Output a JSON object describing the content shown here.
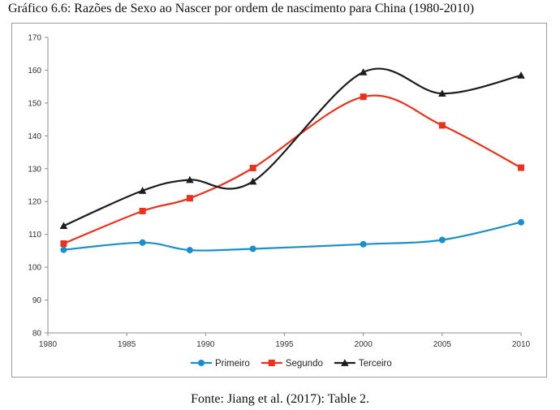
{
  "caption": "Gráfico 6.6: Razões de Sexo ao Nascer por ordem de nascimento para China (1980-2010)",
  "source": "Fonte: Jiang et al. (2017): Table 2.",
  "chart_data": {
    "type": "line",
    "title": "Gráfico 6.6: Razões de Sexo ao Nascer por ordem de nascimento para China (1980-2010)",
    "xlabel": "",
    "ylabel": "",
    "xlim": [
      1980,
      2010
    ],
    "ylim": [
      80,
      170
    ],
    "x_ticks": [
      1980,
      1985,
      1990,
      1995,
      2000,
      2005,
      2010
    ],
    "y_ticks": [
      80,
      90,
      100,
      110,
      120,
      130,
      140,
      150,
      160,
      170
    ],
    "grid": false,
    "legend_position": "bottom",
    "series": [
      {
        "name": "Primeiro",
        "color": "#1a8fc8",
        "marker": "circle",
        "x": [
          1981,
          1986,
          1989,
          1993,
          2000,
          2005,
          2010
        ],
        "values": [
          105.3,
          107.5,
          105.2,
          105.6,
          107.0,
          108.3,
          113.7
        ]
      },
      {
        "name": "Segundo",
        "color": "#e8321e",
        "marker": "square",
        "x": [
          1981,
          1986,
          1989,
          1993,
          2000,
          2005,
          2010
        ],
        "values": [
          107.2,
          117.1,
          121.0,
          130.2,
          151.9,
          143.2,
          130.3
        ]
      },
      {
        "name": "Terceiro",
        "color": "#1c1c1c",
        "marker": "triangle",
        "x": [
          1981,
          1986,
          1989,
          1993,
          2000,
          2005,
          2010
        ],
        "values": [
          112.6,
          123.3,
          126.6,
          126.1,
          159.4,
          152.9,
          158.4
        ]
      }
    ]
  }
}
